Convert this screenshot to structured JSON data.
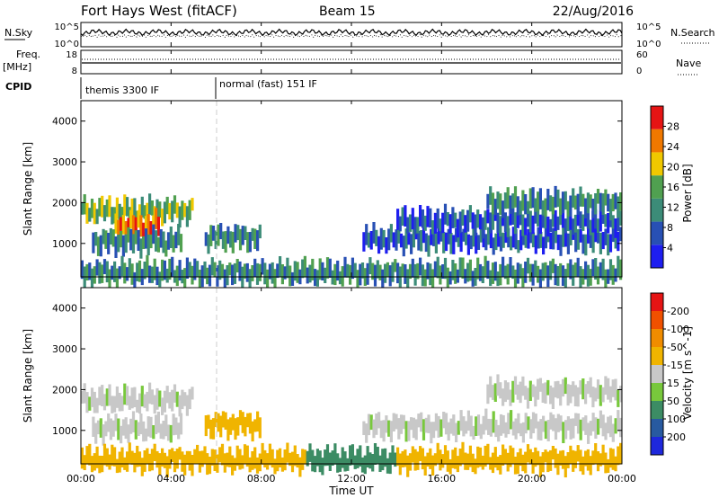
{
  "header": {
    "title": "Fort Hays West (fitACF)",
    "beam": "Beam 15",
    "date": "22/Aug/2016"
  },
  "chart_data": [
    {
      "type": "line",
      "panel": "noise",
      "left_label": "N.Sky",
      "right_label": "N.Search",
      "left_ticks": [
        "10^5",
        "10^0"
      ],
      "right_ticks": [
        "10^5",
        "10^0"
      ],
      "scale": "log"
    },
    {
      "type": "line",
      "panel": "frequency",
      "left_label_top": "Freq.",
      "left_label_bottom": "[MHz]",
      "left_ticks": [
        "18",
        "8"
      ],
      "right_label": "Nave",
      "right_ticks": [
        "60",
        "0"
      ],
      "ylim": [
        8,
        18
      ]
    },
    {
      "type": "table",
      "panel": "cpid",
      "label": "CPID",
      "segments": [
        {
          "name": "themis 3300 IF",
          "start_hour": 0,
          "end_hour": 6
        },
        {
          "name": "normal (fast) 151 IF",
          "start_hour": 6,
          "end_hour": 24
        }
      ]
    },
    {
      "type": "heatmap",
      "panel": "power",
      "ylabel": "Slant Range [km]",
      "yticks": [
        1000,
        2000,
        3000,
        4000
      ],
      "ylim": [
        180,
        4500
      ],
      "colorbar_label": "Power [dB]",
      "colorbar_ticks": [
        "4",
        "8",
        "12",
        "16",
        "20",
        "24",
        "28"
      ],
      "colorbar_colors": [
        "#1e1ef0",
        "#2850b4",
        "#3c8c78",
        "#50a050",
        "#f0c800",
        "#f07800",
        "#e61414"
      ],
      "features": [
        {
          "start_hour": 0.0,
          "end_hour": 5.0,
          "range_km": 1800,
          "level": 14
        },
        {
          "start_hour": 1.5,
          "end_hour": 3.5,
          "range_km": 1450,
          "level": 24
        },
        {
          "start_hour": 0.5,
          "end_hour": 4.5,
          "range_km": 1050,
          "level": 10
        },
        {
          "start_hour": 5.5,
          "end_hour": 8.0,
          "range_km": 1150,
          "level": 10
        },
        {
          "start_hour": 12.5,
          "end_hour": 24.0,
          "range_km": 1100,
          "level": 8
        },
        {
          "start_hour": 14.0,
          "end_hour": 24.0,
          "range_km": 1550,
          "level": 6
        },
        {
          "start_hour": 18.0,
          "end_hour": 24.0,
          "range_km": 2000,
          "level": 10
        },
        {
          "start_hour": 0.0,
          "end_hour": 24.0,
          "range_km": 280,
          "level": 10
        }
      ]
    },
    {
      "type": "heatmap",
      "panel": "velocity",
      "ylabel": "Slant Range [km]",
      "yticks": [
        1000,
        2000,
        3000,
        4000
      ],
      "ylim": [
        180,
        4500
      ],
      "colorbar_label": "Velocity [m s^-1]",
      "colorbar_ticks": [
        "200",
        "100",
        "50",
        "15",
        "-15",
        "-50",
        "-100",
        "-200"
      ],
      "colorbar_colors": [
        "#1e28dc",
        "#285aa0",
        "#3c8c64",
        "#78c83c",
        "#c8c8c8",
        "#f0b400",
        "#f08c00",
        "#f05000",
        "#e61414"
      ],
      "features": [
        {
          "start_hour": 0.0,
          "end_hour": 5.0,
          "range_km": 1750,
          "velocity": 0
        },
        {
          "start_hour": 0.5,
          "end_hour": 4.5,
          "range_km": 1050,
          "velocity": 0
        },
        {
          "start_hour": 5.5,
          "end_hour": 8.0,
          "range_km": 1150,
          "velocity": -40
        },
        {
          "start_hour": 12.5,
          "end_hour": 24.0,
          "range_km": 1100,
          "velocity": 0
        },
        {
          "start_hour": 18.0,
          "end_hour": 24.0,
          "range_km": 1950,
          "velocity": 0
        },
        {
          "start_hour": 0.0,
          "end_hour": 10.0,
          "range_km": 280,
          "velocity": -40
        },
        {
          "start_hour": 10.0,
          "end_hour": 14.0,
          "range_km": 280,
          "velocity": 40
        },
        {
          "start_hour": 14.0,
          "end_hour": 24.0,
          "range_km": 280,
          "velocity": -30
        }
      ]
    }
  ],
  "time_axis": {
    "label": "Time UT",
    "ticks": [
      "00:00",
      "04:00",
      "08:00",
      "12:00",
      "16:00",
      "20:00",
      "00:00"
    ],
    "range_hours": [
      0,
      24
    ]
  }
}
